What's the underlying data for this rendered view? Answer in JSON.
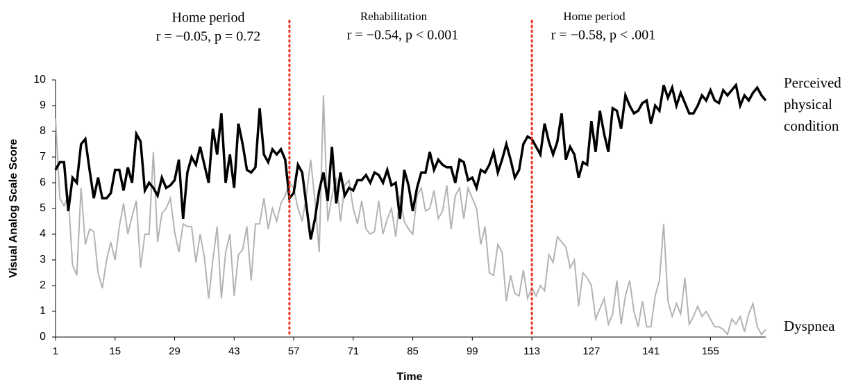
{
  "chart_data": {
    "type": "line",
    "xlabel": "Time",
    "ylabel": "Visual Analog Scale Score",
    "xlim": [
      1,
      168
    ],
    "ylim": [
      0,
      10
    ],
    "xticks": [
      1,
      15,
      29,
      43,
      57,
      71,
      85,
      99,
      113,
      127,
      141,
      155
    ],
    "yticks": [
      0,
      1,
      2,
      3,
      4,
      5,
      6,
      7,
      8,
      9,
      10
    ],
    "dividers": [
      56,
      113
    ],
    "divider_color": "#e8321e",
    "annotations": [
      {
        "title": "Home period",
        "stat": "r = −0.05, p = 0.72"
      },
      {
        "title": "Rehabilitation",
        "stat": "r = −0.54, p < 0.001"
      },
      {
        "title": "Home period",
        "stat": "r = −0.58, p < .001"
      }
    ],
    "x": [
      1,
      2,
      3,
      4,
      5,
      6,
      7,
      8,
      9,
      10,
      11,
      12,
      13,
      14,
      15,
      16,
      17,
      18,
      19,
      20,
      21,
      22,
      23,
      24,
      25,
      26,
      27,
      28,
      29,
      30,
      31,
      32,
      33,
      34,
      35,
      36,
      37,
      38,
      39,
      40,
      41,
      42,
      43,
      44,
      45,
      46,
      47,
      48,
      49,
      50,
      51,
      52,
      53,
      54,
      55,
      56,
      57,
      58,
      59,
      60,
      61,
      62,
      63,
      64,
      65,
      66,
      67,
      68,
      69,
      70,
      71,
      72,
      73,
      74,
      75,
      76,
      77,
      78,
      79,
      80,
      81,
      82,
      83,
      84,
      85,
      86,
      87,
      88,
      89,
      90,
      91,
      92,
      93,
      94,
      95,
      96,
      97,
      98,
      99,
      100,
      101,
      102,
      103,
      104,
      105,
      106,
      107,
      108,
      109,
      110,
      111,
      112,
      113,
      114,
      115,
      116,
      117,
      118,
      119,
      120,
      121,
      122,
      123,
      124,
      125,
      126,
      127,
      128,
      129,
      130,
      131,
      132,
      133,
      134,
      135,
      136,
      137,
      138,
      139,
      140,
      141,
      142,
      143,
      144,
      145,
      146,
      147,
      148,
      149,
      150,
      151,
      152,
      153,
      154,
      155,
      156,
      157,
      158,
      159,
      160,
      161,
      162,
      163,
      164,
      165,
      166,
      167,
      168
    ],
    "series": [
      {
        "name": "Perceived physical condition",
        "color": "#000000",
        "values": [
          6.5,
          6.8,
          6.8,
          4.9,
          6.2,
          6.0,
          7.5,
          7.7,
          6.5,
          5.4,
          6.2,
          5.4,
          5.4,
          5.6,
          6.5,
          6.5,
          5.7,
          6.6,
          6.0,
          7.9,
          7.6,
          5.7,
          6.0,
          5.8,
          5.5,
          6.2,
          5.8,
          5.9,
          6.1,
          6.9,
          4.6,
          6.4,
          7.0,
          6.7,
          7.4,
          6.7,
          6.0,
          8.1,
          7.1,
          8.7,
          6.0,
          7.1,
          5.8,
          8.3,
          7.5,
          6.5,
          6.4,
          6.6,
          8.9,
          7.1,
          6.8,
          7.3,
          7.1,
          7.3,
          6.9,
          5.4,
          5.6,
          6.7,
          6.4,
          5.1,
          3.8,
          4.6,
          5.7,
          6.4,
          5.3,
          7.4,
          5.2,
          6.4,
          5.5,
          5.8,
          5.7,
          6.1,
          6.1,
          6.3,
          6.0,
          6.4,
          6.3,
          6.0,
          6.5,
          5.9,
          6.0,
          4.6,
          6.5,
          5.9,
          4.9,
          5.8,
          6.4,
          6.4,
          7.2,
          6.5,
          6.9,
          6.7,
          6.6,
          6.6,
          6.0,
          6.9,
          6.8,
          6.1,
          6.2,
          5.8,
          6.5,
          6.4,
          6.7,
          7.2,
          6.4,
          6.9,
          7.5,
          6.9,
          6.2,
          6.5,
          7.5,
          7.8,
          7.7,
          7.4,
          7.1,
          8.3,
          7.6,
          7.1,
          7.6,
          8.7,
          6.9,
          7.4,
          7.1,
          6.2,
          6.8,
          6.7,
          8.4,
          7.2,
          8.8,
          7.9,
          7.2,
          8.9,
          8.8,
          8.1,
          9.4,
          9.0,
          8.7,
          8.8,
          9.1,
          9.2,
          8.3,
          9.0,
          8.8,
          9.8,
          9.3,
          9.7,
          9.0,
          9.5,
          9.1,
          8.7,
          8.7,
          9.0,
          9.4,
          9.2,
          9.6,
          9.2,
          9.1,
          9.6,
          9.4,
          9.6,
          9.8,
          9.0,
          9.4,
          9.2,
          9.5,
          9.7,
          9.4,
          9.2
        ]
      },
      {
        "name": "Dyspnea",
        "color": "#b3b3b3",
        "values": [
          8.5,
          5.4,
          5.1,
          5.5,
          2.8,
          2.4,
          5.8,
          3.6,
          4.2,
          4.1,
          2.5,
          1.9,
          3.0,
          3.7,
          3.0,
          4.3,
          5.2,
          4.0,
          4.7,
          5.3,
          2.7,
          4.0,
          4.0,
          7.2,
          3.7,
          4.8,
          5.0,
          5.4,
          4.1,
          3.3,
          4.4,
          4.3,
          4.3,
          2.9,
          4.0,
          3.1,
          1.5,
          3.0,
          4.3,
          1.5,
          3.3,
          4.0,
          1.6,
          3.2,
          3.4,
          4.3,
          2.2,
          4.4,
          4.4,
          5.4,
          4.2,
          5.0,
          4.5,
          5.2,
          5.5,
          6.0,
          5.8,
          5.0,
          4.5,
          5.5,
          6.9,
          5.3,
          3.3,
          9.4,
          4.5,
          5.5,
          6.2,
          4.5,
          5.9,
          6.1,
          5.0,
          4.4,
          5.3,
          4.2,
          4.0,
          4.1,
          5.3,
          4.0,
          4.6,
          5.0,
          3.9,
          5.5,
          4.5,
          4.2,
          4.0,
          5.5,
          5.8,
          4.9,
          5.0,
          5.7,
          4.6,
          4.9,
          5.9,
          4.2,
          5.5,
          5.8,
          4.6,
          5.8,
          5.4,
          5.0,
          3.6,
          4.3,
          2.5,
          2.4,
          3.6,
          3.3,
          1.4,
          2.4,
          1.7,
          1.6,
          2.6,
          1.5,
          1.9,
          1.6,
          2.0,
          1.8,
          3.2,
          2.9,
          3.9,
          3.7,
          3.5,
          2.7,
          3.0,
          1.2,
          2.5,
          2.3,
          2.0,
          0.7,
          1.1,
          1.5,
          0.5,
          0.9,
          2.2,
          0.5,
          1.6,
          2.2,
          1.0,
          0.4,
          1.4,
          0.4,
          0.4,
          1.6,
          2.2,
          4.4,
          1.4,
          0.8,
          1.3,
          0.9,
          2.3,
          0.5,
          0.8,
          1.2,
          0.8,
          1.0,
          0.7,
          0.4,
          0.4,
          0.3,
          0.1,
          0.7,
          0.5,
          0.8,
          0.2,
          0.9,
          1.3,
          0.4,
          0.1,
          0.3
        ]
      }
    ]
  }
}
